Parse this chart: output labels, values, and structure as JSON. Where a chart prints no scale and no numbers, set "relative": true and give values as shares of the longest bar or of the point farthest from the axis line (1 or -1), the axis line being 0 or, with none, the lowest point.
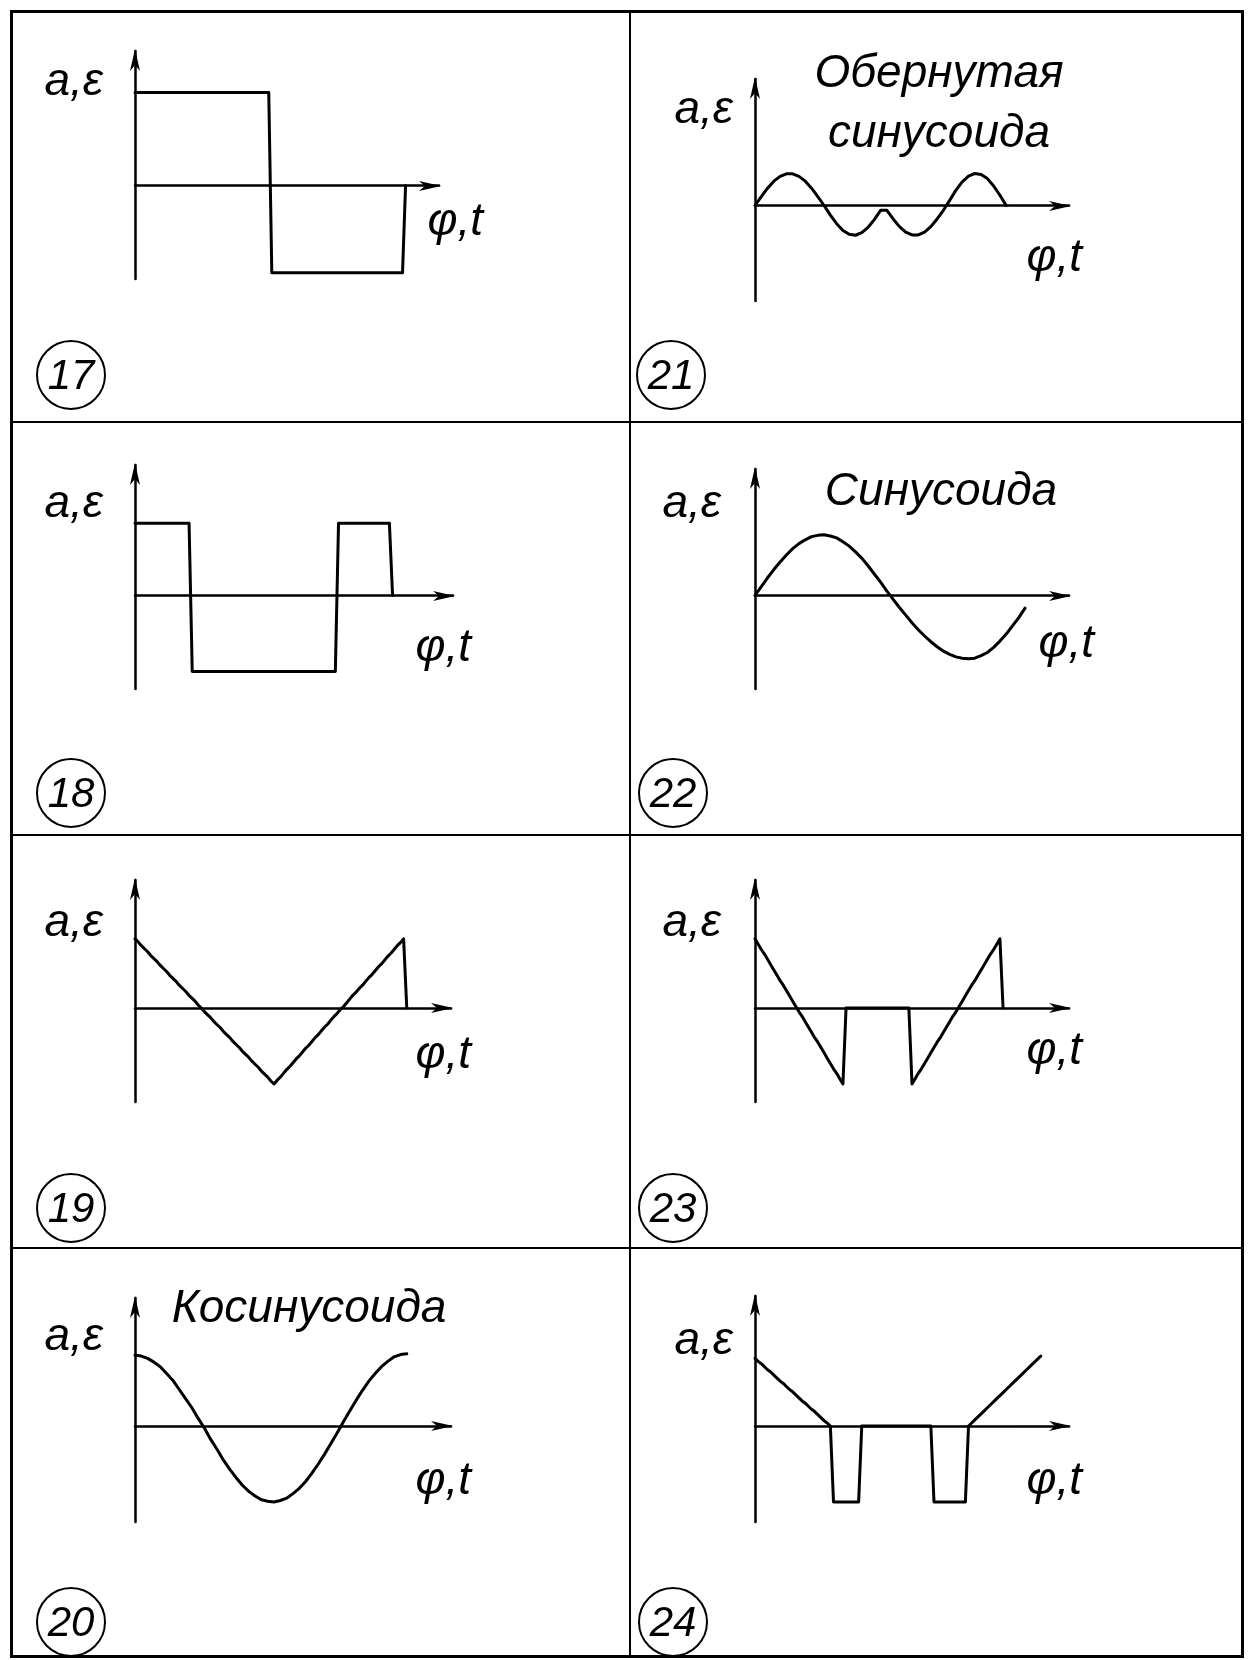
{
  "chart_data": [
    {
      "type": "line",
      "xlabel": "φ,t",
      "ylabel": "a,ε",
      "annotations": [
        "17"
      ],
      "relative": true,
      "marker": "none",
      "color": "#000000",
      "categories": [
        null,
        null,
        null,
        null,
        null,
        null,
        null,
        null,
        null,
        null,
        null,
        null,
        null,
        null,
        null,
        null,
        null,
        null,
        null,
        null,
        null,
        null,
        null,
        null,
        null,
        null,
        null,
        null,
        null,
        null,
        null,
        null,
        null,
        null,
        null,
        null,
        null,
        null,
        null,
        null,
        null,
        null,
        null,
        null,
        null,
        null,
        null,
        null,
        null,
        null,
        null,
        null,
        null,
        null,
        null,
        null,
        null,
        null,
        null,
        null,
        null,
        null,
        null,
        null,
        null,
        null,
        null,
        null,
        null,
        null,
        null,
        null,
        null,
        null,
        null,
        null,
        null,
        null,
        null,
        null,
        null,
        null,
        null,
        null,
        null,
        null,
        null,
        null,
        null,
        null,
        null,
        null,
        null,
        null,
        null,
        null,
        null,
        null,
        null,
        null,
        null
      ],
      "values": [
        1,
        1,
        1,
        1,
        1,
        1,
        1,
        1,
        1,
        1,
        1,
        1,
        1,
        1,
        1,
        1,
        1,
        1,
        1,
        1,
        1,
        1,
        1,
        1,
        1,
        1,
        1,
        1,
        1,
        1,
        1,
        1,
        1,
        1,
        1,
        1,
        1,
        1,
        1,
        1,
        1,
        1,
        1,
        1,
        1,
        -0.94,
        -0.94,
        -0.94,
        -0.94,
        -0.94,
        -0.94,
        -0.94,
        -0.94,
        -0.94,
        -0.94,
        -0.94,
        -0.94,
        -0.94,
        -0.94,
        -0.94,
        -0.94,
        -0.94,
        -0.94,
        -0.94,
        -0.94,
        -0.94,
        -0.94,
        -0.94,
        -0.94,
        -0.94,
        -0.94,
        -0.94,
        -0.94,
        -0.94,
        -0.94,
        -0.94,
        -0.94,
        -0.94,
        -0.94,
        -0.94,
        -0.94,
        -0.94,
        -0.94,
        -0.94,
        -0.94,
        -0.94,
        -0.94,
        -0.94,
        -0.94,
        0,
        null,
        null,
        null,
        null,
        null,
        null,
        null,
        null,
        null,
        null,
        null
      ]
    },
    {
      "type": "line",
      "title": "Обернутая синусоида",
      "xlabel": "φ,t",
      "ylabel": "a,ε",
      "annotations": [
        "21"
      ],
      "relative": true,
      "marker": "none",
      "color": "#000000",
      "categories": [
        null,
        null,
        null,
        null,
        null,
        null,
        null,
        null,
        null,
        null,
        null,
        null,
        null,
        null,
        null,
        null,
        null,
        null,
        null,
        null,
        null,
        null,
        null,
        null,
        null,
        null,
        null,
        null,
        null,
        null,
        null,
        null,
        null,
        null,
        null,
        null,
        null,
        null,
        null,
        null,
        null,
        null,
        null,
        null,
        null,
        null,
        null,
        null,
        null,
        null,
        null
      ],
      "values": [
        0,
        0.28,
        0.54,
        0.76,
        0.91,
        0.99,
        0.99,
        0.91,
        0.76,
        0.54,
        0.28,
        0,
        -0.3,
        -0.57,
        -0.78,
        -0.9,
        -0.93,
        -0.85,
        -0.68,
        -0.44,
        -0.15,
        -0.15,
        -0.42,
        -0.66,
        -0.83,
        -0.92,
        -0.92,
        -0.83,
        -0.66,
        -0.42,
        -0.15,
        0.16,
        0.48,
        0.74,
        0.92,
        1,
        0.97,
        0.84,
        0.61,
        0.32,
        0,
        null,
        null,
        null,
        null,
        null,
        null,
        null,
        null,
        null,
        null
      ]
    },
    {
      "type": "line",
      "xlabel": "φ,t",
      "ylabel": "a,ε",
      "annotations": [
        "18"
      ],
      "relative": true,
      "marker": "none",
      "color": "#000000",
      "categories": [
        null,
        null,
        null,
        null,
        null,
        null,
        null,
        null,
        null,
        null,
        null,
        null,
        null,
        null,
        null,
        null,
        null,
        null,
        null,
        null,
        null,
        null,
        null,
        null,
        null,
        null,
        null,
        null,
        null,
        null,
        null,
        null,
        null,
        null,
        null,
        null,
        null,
        null,
        null,
        null,
        null,
        null,
        null,
        null,
        null,
        null,
        null,
        null,
        null,
        null,
        null,
        null,
        null,
        null,
        null,
        null,
        null,
        null,
        null,
        null,
        null,
        null,
        null,
        null,
        null,
        null,
        null,
        null,
        null,
        null,
        null,
        null,
        null,
        null,
        null,
        null,
        null,
        null,
        null,
        null,
        null,
        null,
        null,
        null,
        null,
        null,
        null,
        null,
        null,
        null,
        null,
        null,
        null,
        null,
        null,
        null,
        null,
        null,
        null,
        null,
        null
      ],
      "values": [
        0.95,
        0.95,
        0.95,
        0.95,
        0.95,
        0.95,
        0.95,
        0.95,
        0.95,
        0.95,
        0.95,
        0.95,
        0.95,
        0.95,
        0.95,
        0.95,
        0.95,
        0.95,
        -1,
        -1,
        -1,
        -1,
        -1,
        -1,
        -1,
        -1,
        -1,
        -1,
        -1,
        -1,
        -1,
        -1,
        -1,
        -1,
        -1,
        -1,
        -1,
        -1,
        -1,
        -1,
        -1,
        -1,
        -1,
        -1,
        -1,
        -1,
        -1,
        -1,
        -1,
        -1,
        -1,
        -1,
        -1,
        -1,
        -1,
        -1,
        -1,
        -1,
        -1,
        -1,
        -1,
        -1,
        -1,
        -1,
        0.95,
        0.95,
        0.95,
        0.95,
        0.95,
        0.95,
        0.95,
        0.95,
        0.95,
        0.95,
        0.95,
        0.95,
        0.95,
        0.95,
        0.95,
        0.95,
        0.95,
        0,
        null,
        null,
        null,
        null,
        null,
        null,
        null,
        null,
        null,
        null,
        null,
        null,
        null,
        null,
        null,
        null,
        null,
        null,
        null
      ]
    },
    {
      "type": "line",
      "title": "Синусоида",
      "xlabel": "φ,t",
      "ylabel": "a,ε",
      "annotations": [
        "22"
      ],
      "relative": true,
      "marker": "none",
      "color": "#000000",
      "categories": [
        null,
        null,
        null,
        null,
        null,
        null,
        null,
        null,
        null,
        null,
        null,
        null,
        null,
        null,
        null,
        null,
        null,
        null,
        null,
        null,
        null,
        null,
        null,
        null,
        null,
        null,
        null,
        null,
        null,
        null,
        null,
        null,
        null,
        null,
        null,
        null,
        null,
        null,
        null,
        null,
        null,
        null,
        null,
        null,
        null,
        null,
        null,
        null,
        null,
        null,
        null
      ],
      "values": [
        0,
        0.14,
        0.28,
        0.41,
        0.53,
        0.64,
        0.74,
        0.82,
        0.88,
        0.93,
        0.95,
        0.96,
        0.94,
        0.91,
        0.85,
        0.78,
        0.69,
        0.59,
        0.47,
        0.34,
        0.21,
        0.07,
        -0.06,
        -0.19,
        -0.31,
        -0.43,
        -0.54,
        -0.64,
        -0.73,
        -0.81,
        -0.88,
        -0.93,
        -0.97,
        -0.99,
        -1,
        -0.99,
        -0.95,
        -0.9,
        -0.82,
        -0.72,
        -0.61,
        -0.48,
        -0.35,
        -0.2,
        null,
        null,
        null,
        null,
        null,
        null,
        null
      ]
    },
    {
      "type": "line",
      "xlabel": "φ,t",
      "ylabel": "a,ε",
      "annotations": [
        "19"
      ],
      "relative": true,
      "marker": "none",
      "color": "#000000",
      "categories": [
        null,
        null,
        null,
        null,
        null,
        null,
        null,
        null,
        null,
        null,
        null,
        null,
        null,
        null,
        null,
        null,
        null,
        null,
        null,
        null,
        null,
        null,
        null,
        null,
        null,
        null,
        null,
        null,
        null,
        null,
        null,
        null,
        null,
        null,
        null,
        null,
        null,
        null,
        null,
        null,
        null,
        null,
        null,
        null,
        null,
        null,
        null,
        null,
        null,
        null,
        null,
        null,
        null,
        null,
        null,
        null,
        null,
        null,
        null,
        null,
        null,
        null,
        null,
        null,
        null,
        null,
        null,
        null,
        null,
        null,
        null,
        null,
        null,
        null,
        null,
        null,
        null,
        null,
        null,
        null,
        null,
        null,
        null,
        null,
        null,
        null,
        null,
        null,
        null,
        null,
        null,
        null,
        null,
        null,
        null,
        null,
        null,
        null,
        null,
        null,
        null
      ],
      "values": [
        0.91,
        0.87,
        0.82,
        0.78,
        0.74,
        0.69,
        0.65,
        0.61,
        0.56,
        0.52,
        0.48,
        0.43,
        0.39,
        0.35,
        0.3,
        0.26,
        0.22,
        0.17,
        0.13,
        0.09,
        0.04,
        0,
        -0.05,
        -0.09,
        -0.13,
        -0.18,
        -0.22,
        -0.26,
        -0.31,
        -0.35,
        -0.39,
        -0.44,
        -0.48,
        -0.52,
        -0.57,
        -0.61,
        -0.65,
        -0.7,
        -0.74,
        -0.78,
        -0.83,
        -0.87,
        -0.91,
        -0.96,
        -1,
        -0.95,
        -0.91,
        -0.86,
        -0.81,
        -0.77,
        -0.72,
        -0.67,
        -0.63,
        -0.58,
        -0.53,
        -0.49,
        -0.44,
        -0.39,
        -0.35,
        -0.3,
        -0.25,
        -0.21,
        -0.16,
        -0.11,
        -0.07,
        -0.02,
        0.02,
        0.07,
        0.12,
        0.17,
        0.21,
        0.26,
        0.3,
        0.35,
        0.4,
        0.44,
        0.49,
        0.54,
        0.58,
        0.63,
        0.68,
        0.72,
        0.77,
        0.82,
        0.86,
        0.91,
        0,
        null,
        null,
        null,
        null,
        null,
        null,
        null,
        null,
        null,
        null,
        null,
        null,
        null,
        null
      ]
    },
    {
      "type": "line",
      "xlabel": "φ,t",
      "ylabel": "a,ε",
      "annotations": [
        "23"
      ],
      "relative": true,
      "marker": "none",
      "color": "#000000",
      "categories": [
        null,
        null,
        null,
        null,
        null,
        null,
        null,
        null,
        null,
        null,
        null,
        null,
        null,
        null,
        null,
        null,
        null,
        null,
        null,
        null,
        null,
        null,
        null,
        null,
        null,
        null,
        null,
        null,
        null,
        null,
        null,
        null,
        null,
        null,
        null,
        null,
        null,
        null,
        null,
        null,
        null,
        null,
        null,
        null,
        null,
        null,
        null,
        null,
        null,
        null,
        null,
        null,
        null,
        null,
        null,
        null,
        null,
        null,
        null,
        null,
        null,
        null,
        null,
        null,
        null,
        null,
        null,
        null,
        null,
        null,
        null,
        null,
        null,
        null,
        null,
        null,
        null,
        null,
        null,
        null,
        null,
        null,
        null,
        null,
        null,
        null,
        null,
        null,
        null,
        null,
        null,
        null,
        null,
        null,
        null,
        null,
        null,
        null,
        null,
        null,
        null
      ],
      "values": [
        0.91,
        0.84,
        0.77,
        0.71,
        0.64,
        0.57,
        0.5,
        0.43,
        0.36,
        0.3,
        0.23,
        0.16,
        0.09,
        0.02,
        -0.05,
        -0.11,
        -0.18,
        -0.25,
        -0.32,
        -0.39,
        -0.45,
        -0.52,
        -0.59,
        -0.66,
        -0.73,
        -0.8,
        -0.86,
        -0.93,
        -1,
        0,
        0,
        0,
        0,
        0,
        0,
        0,
        0,
        0,
        0,
        0,
        0,
        0,
        0,
        0,
        0,
        0,
        0,
        0,
        0,
        0,
        -1,
        -0.93,
        -0.86,
        -0.8,
        -0.73,
        -0.66,
        -0.59,
        -0.52,
        -0.45,
        -0.39,
        -0.32,
        -0.25,
        -0.18,
        -0.11,
        -0.05,
        0.02,
        0.09,
        0.16,
        0.23,
        0.3,
        0.36,
        0.43,
        0.5,
        0.57,
        0.64,
        0.71,
        0.77,
        0.84,
        0.91,
        0,
        null,
        null,
        null,
        null,
        null,
        null,
        null,
        null,
        null,
        null,
        null,
        null,
        null,
        null,
        null,
        null,
        null,
        null,
        null,
        null,
        null
      ]
    },
    {
      "type": "line",
      "title": "Косинусоида",
      "xlabel": "φ,t",
      "ylabel": "a,ε",
      "annotations": [
        "20"
      ],
      "relative": true,
      "marker": "none",
      "color": "#000000",
      "categories": [
        null,
        null,
        null,
        null,
        null,
        null,
        null,
        null,
        null,
        null,
        null,
        null,
        null,
        null,
        null,
        null,
        null,
        null,
        null,
        null,
        null,
        null,
        null,
        null,
        null,
        null,
        null,
        null,
        null,
        null,
        null,
        null,
        null,
        null,
        null,
        null,
        null,
        null,
        null,
        null,
        null,
        null,
        null,
        null,
        null,
        null,
        null,
        null,
        null,
        null,
        null
      ],
      "values": [
        0.93,
        0.92,
        0.89,
        0.84,
        0.78,
        0.69,
        0.6,
        0.48,
        0.36,
        0.24,
        0.1,
        -0.03,
        -0.18,
        -0.31,
        -0.45,
        -0.57,
        -0.68,
        -0.78,
        -0.86,
        -0.92,
        -0.97,
        -0.99,
        -1,
        -0.98,
        -0.95,
        -0.89,
        -0.82,
        -0.73,
        -0.62,
        -0.5,
        -0.37,
        -0.23,
        -0.09,
        0.06,
        0.2,
        0.34,
        0.47,
        0.59,
        0.69,
        0.78,
        0.85,
        0.91,
        0.94,
        0.95,
        null,
        null,
        null,
        null,
        null,
        null,
        null
      ]
    },
    {
      "type": "line",
      "xlabel": "φ,t",
      "ylabel": "a,ε",
      "annotations": [
        "24"
      ],
      "relative": true,
      "marker": "none",
      "color": "#000000",
      "categories": [
        null,
        null,
        null,
        null,
        null,
        null,
        null,
        null,
        null,
        null,
        null,
        null,
        null,
        null,
        null,
        null,
        null,
        null,
        null,
        null,
        null,
        null,
        null,
        null,
        null,
        null,
        null,
        null,
        null,
        null,
        null,
        null,
        null,
        null,
        null,
        null,
        null,
        null,
        null,
        null,
        null,
        null,
        null,
        null,
        null,
        null,
        null,
        null,
        null,
        null,
        null,
        null,
        null,
        null,
        null,
        null,
        null,
        null,
        null,
        null,
        null,
        null,
        null,
        null,
        null,
        null,
        null,
        null,
        null,
        null,
        null,
        null,
        null,
        null,
        null,
        null,
        null,
        null,
        null,
        null,
        null,
        null,
        null,
        null,
        null,
        null,
        null,
        null,
        null,
        null,
        null,
        null,
        null,
        null,
        null,
        null,
        null,
        null,
        null,
        null,
        null
      ],
      "values": [
        0.89,
        0.85,
        0.82,
        0.78,
        0.74,
        0.71,
        0.67,
        0.63,
        0.59,
        0.56,
        0.52,
        0.48,
        0.45,
        0.41,
        0.37,
        0.33,
        0.3,
        0.26,
        0.22,
        0.19,
        0.15,
        0.11,
        0.07,
        0.04,
        0,
        -1,
        -1,
        -1,
        -1,
        -1,
        -1,
        -1,
        -1,
        -1,
        0,
        0,
        0,
        0,
        0,
        0,
        0,
        0,
        0,
        0,
        0,
        0,
        0,
        0,
        0,
        0,
        0,
        0,
        0,
        0,
        0,
        0,
        0,
        -1,
        -1,
        -1,
        -1,
        -1,
        -1,
        -1,
        -1,
        -1,
        -1,
        -1,
        0,
        0.04,
        0.08,
        0.12,
        0.16,
        0.2,
        0.24,
        0.28,
        0.32,
        0.36,
        0.4,
        0.44,
        0.48,
        0.52,
        0.56,
        0.6,
        0.64,
        0.68,
        0.72,
        0.76,
        0.8,
        0.84,
        0.88,
        0.92,
        null,
        null,
        null,
        null,
        null,
        null,
        null,
        null,
        null
      ]
    }
  ]
}
